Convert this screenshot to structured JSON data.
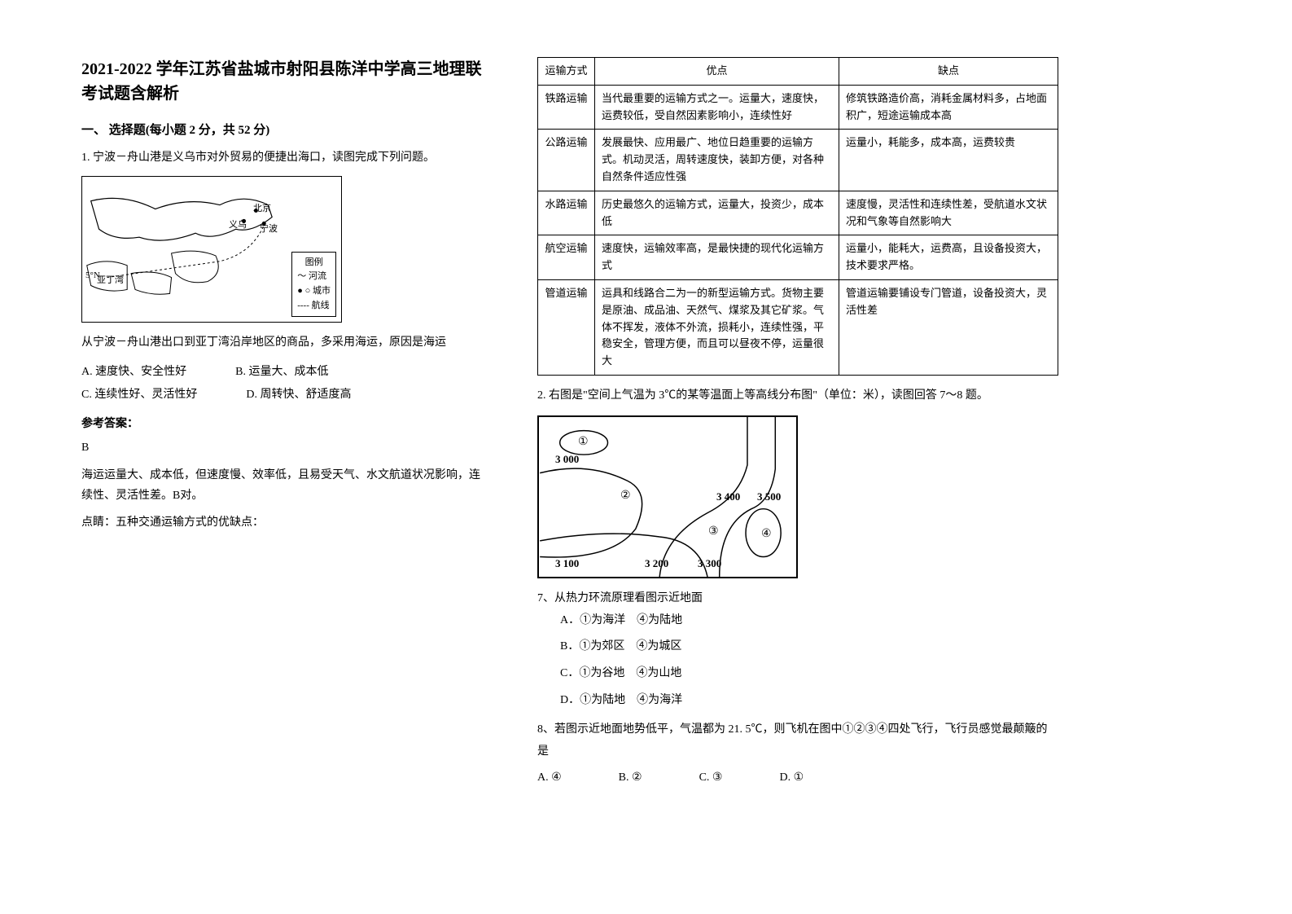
{
  "title": "2021-2022 学年江苏省盐城市射阳县陈洋中学高三地理联考试题含解析",
  "section1": {
    "header": "一、 选择题(每小题 2 分，共 52 分)",
    "q1": {
      "stem": "1. 宁波－舟山港是义乌市对外贸易的便捷出海口，读图完成下列问题。",
      "map": {
        "labels": {
          "beijing": "北京",
          "yiwu": "义乌",
          "ningbo": "宁波",
          "yading": "亚丁湾",
          "lat": "5°N"
        },
        "legend_title": "图例",
        "legend_river": "～ 河流",
        "legend_city": "● ○ 城市",
        "legend_route": "---- 航线"
      },
      "sub_stem": "从宁波－舟山港出口到亚丁湾沿岸地区的商品，多采用海运，原因是海运",
      "options": {
        "A": "A.  速度快、安全性好",
        "B": "B.  运量大、成本低",
        "C": "C.  连续性好、灵活性好",
        "D": "D.  周转快、舒适度高"
      },
      "answer_label": "参考答案：",
      "answer": "B",
      "explanation": "海运运量大、成本低，但速度慢、效率低，且易受天气、水文航道状况影响，连续性、灵活性差。B对。",
      "tip": "点睛：五种交通运输方式的优缺点："
    }
  },
  "transport_table": {
    "headers": [
      "运输方式",
      "优点",
      "缺点"
    ],
    "rows": [
      {
        "mode": "铁路运输",
        "pros": "当代最重要的运输方式之一。运量大，速度快，运费较低，受自然因素影响小，连续性好",
        "cons": "修筑铁路造价高，消耗金属材料多，占地面积广，短途运输成本高"
      },
      {
        "mode": "公路运输",
        "pros": "发展最快、应用最广、地位日趋重要的运输方式。机动灵活，周转速度快，装卸方便，对各种自然条件适应性强",
        "cons": "运量小，耗能多，成本高，运费较贵"
      },
      {
        "mode": "水路运输",
        "pros": "历史最悠久的运输方式，运量大，投资少，成本低",
        "cons": "速度慢，灵活性和连续性差，受航道水文状况和气象等自然影响大"
      },
      {
        "mode": "航空运输",
        "pros": "速度快，运输效率高，是最快捷的现代化运输方式",
        "cons": "运量小，能耗大，运费高，且设备投资大，技术要求严格。"
      },
      {
        "mode": "管道运输",
        "pros": "运具和线路合二为一的新型运输方式。货物主要是原油、成品油、天然气、煤浆及其它矿浆。气体不挥发，液体不外流，损耗小，连续性强，平稳安全，管理方便，而且可以昼夜不停，运量很大",
        "cons": "管道运输要铺设专门管道，设备投资大，灵活性差"
      }
    ]
  },
  "q2": {
    "stem": "2. 右图是\"空间上气温为 3℃的某等温面上等高线分布图\"（单位：米），读图回答 7～8 题。",
    "chart": {
      "contour_labels": [
        "3 000",
        "3 100",
        "3 200",
        "3 300",
        "3 400",
        "3 500"
      ],
      "markers": [
        "①",
        "②",
        "③",
        "④"
      ]
    },
    "q7": {
      "stem": "7、从热力环流原理看图示近地面",
      "options": {
        "A": "A．①为海洋　④为陆地",
        "B": "B．①为郊区　④为城区",
        "C": "C．①为谷地　④为山地",
        "D": "D．①为陆地　④为海洋"
      }
    },
    "q8": {
      "stem": "8、若图示近地面地势低平，气温都为 21. 5℃，则飞机在图中①②③④四处飞行，飞行员感觉最颠簸的是",
      "options": {
        "A": "A. ④",
        "B": "B. ②",
        "C": "C. ③",
        "D": "D. ①"
      }
    }
  }
}
